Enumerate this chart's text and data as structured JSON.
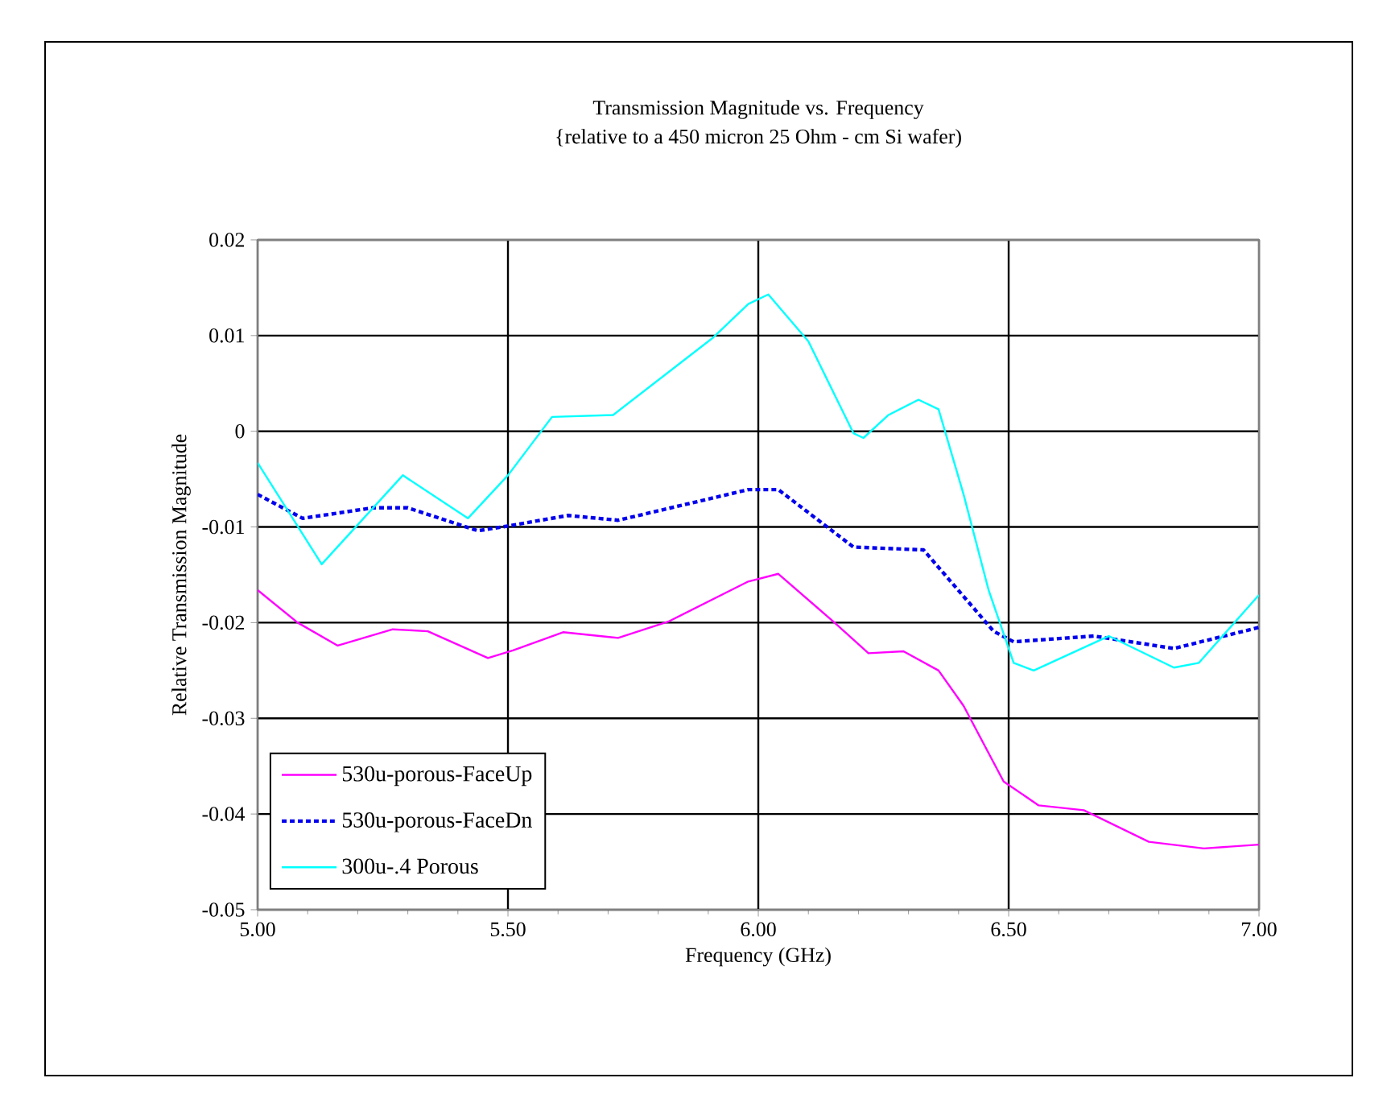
{
  "chart_data": {
    "type": "line",
    "title": "Transmission Magnitude vs. Frequency",
    "subtitle": "{relative to a 450 micron 25 Ohm - cm Si wafer)",
    "xlabel": "Frequency (GHz)",
    "ylabel": "Relative Transmission Magnitude",
    "xlim": [
      5,
      7
    ],
    "ylim": [
      -0.05,
      0.02
    ],
    "xticks": [
      {
        "value": 5,
        "label": "5.00"
      },
      {
        "value": 5.5,
        "label": "5.50"
      },
      {
        "value": 6,
        "label": "6.00"
      },
      {
        "value": 6.5,
        "label": "6.50"
      },
      {
        "value": 7,
        "label": "7.00"
      }
    ],
    "yticks": [
      -0.05,
      -0.04,
      -0.03,
      -0.02,
      -0.01,
      0,
      0.01,
      0.02
    ],
    "grid": true,
    "legend": "bottom left",
    "marker": "none",
    "series": [
      {
        "name": "530u-porous-FaceUp",
        "color": "#ff00ff",
        "line_style": "solid",
        "x": [
          5.0,
          5.08,
          5.16,
          5.27,
          5.34,
          5.46,
          5.51,
          5.61,
          5.72,
          5.82,
          5.98,
          6.04,
          6.15,
          6.22,
          6.29,
          6.36,
          6.41,
          6.49,
          6.56,
          6.65,
          6.78,
          6.89,
          7.0
        ],
        "values": [
          -0.0166,
          -0.02,
          -0.0224,
          -0.0207,
          -0.0209,
          -0.0237,
          -0.0229,
          -0.021,
          -0.0216,
          -0.0199,
          -0.0157,
          -0.0149,
          -0.0199,
          -0.0232,
          -0.023,
          -0.025,
          -0.0287,
          -0.0366,
          -0.0391,
          -0.0396,
          -0.0429,
          -0.0436,
          -0.0432
        ]
      },
      {
        "name": "530u-porous-FaceDn",
        "color": "#0000ee",
        "line_style": "dashed",
        "x": [
          5.0,
          5.09,
          5.23,
          5.3,
          5.44,
          5.5,
          5.62,
          5.72,
          5.98,
          6.04,
          6.19,
          6.33,
          6.47,
          6.51,
          6.67,
          6.83,
          7.0
        ],
        "values": [
          -0.0066,
          -0.0091,
          -0.008,
          -0.008,
          -0.0104,
          -0.0099,
          -0.0088,
          -0.0093,
          -0.0061,
          -0.0061,
          -0.0121,
          -0.0124,
          -0.0209,
          -0.022,
          -0.0214,
          -0.0227,
          -0.0205
        ]
      },
      {
        "name": "300u-.4 Porous",
        "color": "#00ffff",
        "line_style": "solid",
        "x": [
          5.0,
          5.128,
          5.29,
          5.42,
          5.5,
          5.588,
          5.71,
          5.91,
          5.98,
          6.02,
          6.1,
          6.19,
          6.21,
          6.26,
          6.32,
          6.36,
          6.41,
          6.46,
          6.51,
          6.55,
          6.7,
          6.83,
          6.88,
          7.0
        ],
        "values": [
          -0.0033,
          -0.0139,
          -0.0046,
          -0.0091,
          -0.0046,
          0.0015,
          0.0017,
          0.0098,
          0.0133,
          0.0143,
          0.0094,
          -0.0002,
          -0.0007,
          0.0017,
          0.0033,
          0.0023,
          -0.0066,
          -0.0166,
          -0.0242,
          -0.025,
          -0.0214,
          -0.0247,
          -0.0242,
          -0.0171
        ]
      }
    ]
  }
}
